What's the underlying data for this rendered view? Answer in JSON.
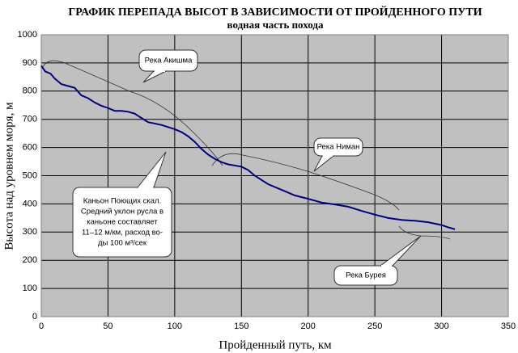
{
  "chart_data": {
    "type": "line",
    "title": "ГРАФИК ПЕРЕПАДА ВЫСОТ В ЗАВИСИМОСТИ ОТ ПРОЙДЕННОГО ПУТИ",
    "subtitle": "водная  часть похода",
    "x_label": "Пройденный путь, км",
    "y_label": "Высота над уровнем моря, м",
    "xlim": [
      0,
      350
    ],
    "ylim": [
      0,
      1000
    ],
    "xticks": [
      0,
      50,
      100,
      150,
      200,
      250,
      300,
      350
    ],
    "yticks": [
      0,
      100,
      200,
      300,
      400,
      500,
      600,
      700,
      800,
      900,
      1000
    ],
    "grid": true,
    "series": [
      {
        "color": "#000080",
        "x": [
          0,
          3,
          7,
          10,
          15,
          20,
          25,
          30,
          35,
          40,
          45,
          50,
          55,
          60,
          65,
          70,
          75,
          80,
          90,
          100,
          105,
          110,
          115,
          120,
          125,
          130,
          135,
          140,
          150,
          155,
          160,
          170,
          180,
          190,
          200,
          210,
          220,
          230,
          240,
          250,
          260,
          270,
          280,
          290,
          300,
          305,
          310
        ],
        "values": [
          890,
          870,
          862,
          845,
          825,
          818,
          812,
          785,
          775,
          760,
          748,
          740,
          730,
          730,
          727,
          720,
          705,
          690,
          680,
          665,
          655,
          640,
          620,
          595,
          575,
          560,
          548,
          540,
          532,
          520,
          500,
          470,
          450,
          430,
          418,
          405,
          398,
          390,
          375,
          362,
          350,
          343,
          340,
          335,
          325,
          317,
          310
        ]
      }
    ],
    "annotations": [
      {
        "lines": [
          "Река Акишма"
        ]
      },
      {
        "lines": [
          "Река Ниман"
        ]
      },
      {
        "lines": [
          "Каньон Поющих скал.",
          "Средний уклон русла в",
          "каньоне составляет",
          "11–12 м/км, расход во-",
          "ды 100 м³/сек"
        ]
      },
      {
        "lines": [
          "Река Бурея"
        ]
      }
    ]
  }
}
